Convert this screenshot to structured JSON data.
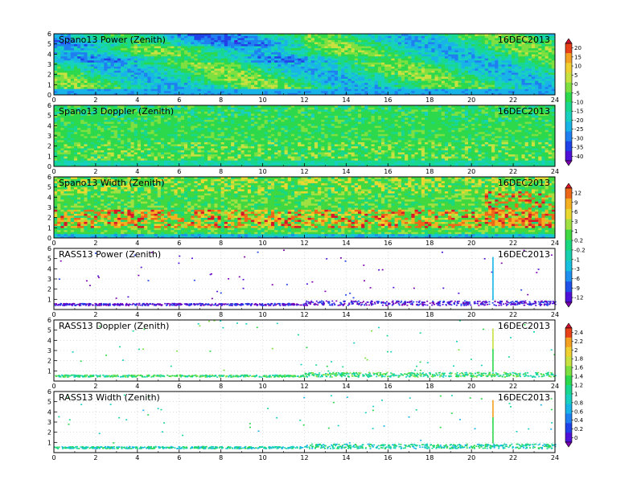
{
  "figure": {
    "date_label": "16DEC2013"
  },
  "colors": {
    "power_scale": [
      "#7a00b0",
      "#4f10d8",
      "#2040e8",
      "#1f7ff0",
      "#18b4e8",
      "#17d0c0",
      "#18d890",
      "#2cd84c",
      "#7ee040",
      "#c8e040",
      "#f0d030",
      "#f4a020",
      "#e84018",
      "#d01030"
    ],
    "width_scale": [
      "#7a00b0",
      "#4f10d8",
      "#2050e8",
      "#1f8ff0",
      "#18c0e0",
      "#17d0b0",
      "#18d880",
      "#40d840",
      "#a0e040",
      "#e8d830",
      "#f4b020",
      "#ec6818",
      "#d81828"
    ],
    "background": "#ffffff",
    "grid": "#c8c8c8"
  },
  "colorbars": [
    {
      "panels": "Spano13 Power / Spano13 Doppler",
      "ticks": [
        "20",
        "15",
        "10",
        "5",
        "0",
        "-5",
        "-10",
        "-15",
        "-20",
        "-25",
        "-30",
        "-35",
        "-40"
      ]
    },
    {
      "panels": "Spano13 Width / RASS13 Power",
      "ticks": [
        "12",
        "9",
        "6",
        "3",
        "1",
        "0.2",
        "-0.2",
        "-1",
        "-3",
        "-6",
        "-9",
        "-12"
      ]
    },
    {
      "panels": "RASS13 Doppler / RASS13 Width",
      "ticks": [
        "2.4",
        "2.2",
        "2",
        "1.8",
        "1.6",
        "1.4",
        "1.2",
        "1",
        "0.8",
        "0.6",
        "0.4",
        "0.2",
        "0"
      ]
    }
  ],
  "chart_data": [
    {
      "type": "heatmap",
      "title": "Spano13 Power (Zenith)",
      "xlim": [
        0,
        24
      ],
      "ylim": [
        0,
        6
      ],
      "xticks": [
        "0",
        "2",
        "4",
        "6",
        "8",
        "10",
        "12",
        "14",
        "16",
        "18",
        "20",
        "22",
        "24"
      ],
      "yticks": [
        "0",
        "1",
        "2",
        "3",
        "4",
        "5",
        "6"
      ],
      "dominant_value_range": [
        -20,
        -10
      ],
      "low_layer_value": -30,
      "data_rows": 6,
      "data_cols": 120
    },
    {
      "type": "heatmap",
      "title": "Spano13 Doppler (Zenith)",
      "xlim": [
        0,
        24
      ],
      "ylim": [
        0,
        6
      ],
      "xticks": [
        "0",
        "2",
        "4",
        "6",
        "8",
        "10",
        "12",
        "14",
        "16",
        "18",
        "20",
        "22",
        "24"
      ],
      "yticks": [
        "0",
        "1",
        "2",
        "3",
        "4",
        "5",
        "6"
      ],
      "dominant_value_range": [
        -15,
        -10
      ]
    },
    {
      "type": "heatmap",
      "title": "Spano13 Width (Zenith)",
      "xlim": [
        0,
        24
      ],
      "ylim": [
        0,
        6
      ],
      "xticks": [
        "0",
        "2",
        "4",
        "6",
        "8",
        "10",
        "12",
        "14",
        "16",
        "18",
        "20",
        "22",
        "24"
      ],
      "yticks": [
        "0",
        "1",
        "2",
        "3",
        "4",
        "5",
        "6"
      ],
      "dominant_value_range": [
        1,
        6
      ],
      "peak_value": 12,
      "peak_height_range": [
        1,
        3
      ]
    },
    {
      "type": "scatter",
      "title": "RASS13 Power (Zenith)",
      "xlim": [
        0,
        24
      ],
      "ylim": [
        0,
        6
      ],
      "xticks": [
        "0",
        "2",
        "4",
        "6",
        "8",
        "10",
        "12",
        "14",
        "16",
        "18",
        "20",
        "22",
        "24"
      ],
      "yticks": [
        "1",
        "2",
        "3",
        "4",
        "5",
        "6"
      ],
      "main_layer_height": 0.6,
      "value_range": [
        -12,
        -9
      ],
      "vertical_streak_time": 21
    },
    {
      "type": "scatter",
      "title": "RASS13 Doppler (Zenith)",
      "xlim": [
        0,
        24
      ],
      "ylim": [
        0,
        6
      ],
      "xticks": [
        "0",
        "2",
        "4",
        "6",
        "8",
        "10",
        "12",
        "14",
        "16",
        "18",
        "20",
        "22",
        "24"
      ],
      "yticks": [
        "1",
        "2",
        "3",
        "4",
        "5",
        "6"
      ],
      "main_layer_height": 0.6,
      "value_range": [
        0.8,
        1.4
      ],
      "vertical_streak_time": 21
    },
    {
      "type": "scatter",
      "title": "RASS13 Width (Zenith)",
      "xlim": [
        0,
        24
      ],
      "ylim": [
        0,
        6
      ],
      "xticks": [
        "0",
        "2",
        "4",
        "6",
        "8",
        "10",
        "12",
        "14",
        "16",
        "18",
        "20",
        "22",
        "24"
      ],
      "yticks": [
        "1",
        "2",
        "3",
        "4",
        "5",
        "6"
      ],
      "main_layer_height": 0.6,
      "value_range": [
        0.4,
        0.8
      ],
      "vertical_streak_time": 21
    }
  ]
}
